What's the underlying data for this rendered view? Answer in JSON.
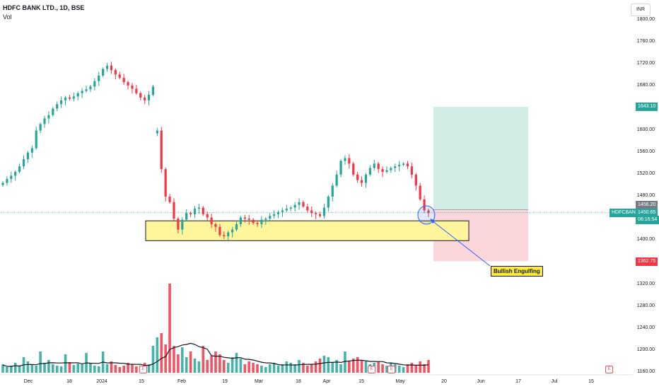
{
  "header": {
    "title": "HDFC BANK LTD., 1D, BSE",
    "vol_label": "Vol",
    "currency": "INR"
  },
  "y_axis": {
    "ticks": [
      "1800.00",
      "1760.00",
      "1720.00",
      "1680.00",
      "1640.00",
      "1600.00",
      "1560.00",
      "1520.00",
      "1480.00",
      "1440.00",
      "1400.00",
      "1360.00",
      "1320.00",
      "1280.00",
      "1240.00",
      "1200.00",
      "1160.00"
    ]
  },
  "x_axis": {
    "labels": [
      "Dec",
      "18",
      "2024",
      "15",
      "Feb",
      "19",
      "Mar",
      "18",
      "Apr",
      "15",
      "May",
      "20",
      "Jun",
      "17",
      "Jul",
      "15"
    ]
  },
  "price_tags": {
    "target": "1643.10",
    "entry": "1456.20",
    "symbol": "HDFCBANK",
    "last": "1450.65",
    "countdown": "06:16:54",
    "stop": "1362.75"
  },
  "annotation": {
    "text": "Bullish Engulfing"
  },
  "earnings_marker": "E",
  "colors": {
    "up": "#26a69a",
    "down": "#f23645",
    "zone": "#fff59d",
    "target_zone": "#d2ece6",
    "stop_zone": "#fbd6da"
  },
  "chart_data": {
    "type": "candlestick",
    "title": "HDFC BANK LTD., 1D, BSE",
    "ylim": [
      1160,
      1800
    ],
    "x": [
      "Dec",
      "18",
      "2024",
      "15",
      "Feb",
      "19",
      "Mar",
      "18",
      "Apr",
      "15",
      "May"
    ],
    "series": [
      {
        "ohlc_close_approx": [
          1505,
          1512,
          1518,
          1525,
          1535,
          1548,
          1560,
          1568,
          1600,
          1612,
          1622,
          1628,
          1640,
          1648,
          1655,
          1660,
          1658,
          1662,
          1668,
          1672,
          1675,
          1680,
          1690,
          1700,
          1712,
          1718,
          1710,
          1702,
          1696,
          1688,
          1682,
          1676,
          1668,
          1660,
          1655,
          1665,
          1680,
          1600,
          1530,
          1480,
          1470,
          1440,
          1420,
          1438,
          1450,
          1448,
          1458,
          1460,
          1448,
          1442,
          1430,
          1425,
          1410,
          1408,
          1415,
          1420,
          1430,
          1442,
          1440,
          1438,
          1432,
          1430,
          1438,
          1440,
          1445,
          1448,
          1452,
          1455,
          1458,
          1460,
          1465,
          1470,
          1462,
          1455,
          1450,
          1448,
          1445,
          1460,
          1480,
          1500,
          1520,
          1545,
          1550,
          1540,
          1520,
          1510,
          1505,
          1520,
          1532,
          1540,
          1530,
          1525,
          1528,
          1532,
          1535,
          1538,
          1540,
          1535,
          1520,
          1500,
          1475,
          1455,
          1450
        ]
      }
    ],
    "annotations": [
      "Bullish Engulfing"
    ],
    "levels": {
      "target": 1643.1,
      "entry": 1456.2,
      "stop": 1362.75,
      "last": 1450.65
    },
    "demand_zone": [
      1400,
      1436
    ]
  }
}
